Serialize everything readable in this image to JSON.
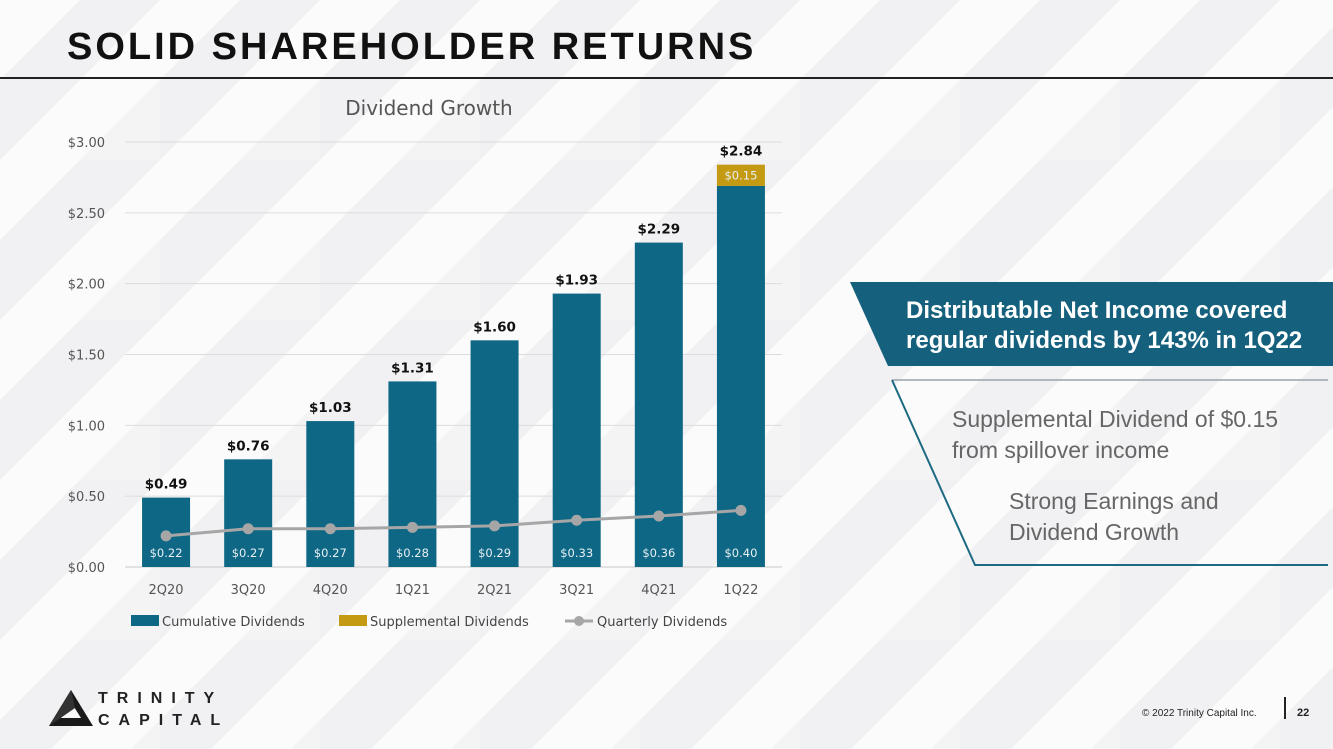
{
  "slide": {
    "title": "SOLID SHAREHOLDER RETURNS",
    "footer": {
      "copyright": "© 2022 Trinity Capital Inc.",
      "page_number": "22"
    },
    "logo": {
      "line1": "TRINITY",
      "line2": "CAPITAL"
    }
  },
  "callouts": {
    "main": "Distributable Net Income covered regular dividends by 143% in 1Q22",
    "point1": "Supplemental Dividend of $0.15 from spillover income",
    "point2": "Strong Earnings and Dividend Growth"
  },
  "chart_data": {
    "type": "bar",
    "title": "Dividend Growth",
    "categories": [
      "2Q20",
      "3Q20",
      "4Q20",
      "1Q21",
      "2Q21",
      "3Q21",
      "4Q21",
      "1Q22"
    ],
    "ylim": [
      0,
      3.0
    ],
    "yticks": [
      "$0.00",
      "$0.50",
      "$1.00",
      "$1.50",
      "$2.00",
      "$2.50",
      "$3.00"
    ],
    "ytick_values": [
      0,
      0.5,
      1.0,
      1.5,
      2.0,
      2.5,
      3.0
    ],
    "grid": true,
    "legend": "bottom",
    "stacked": true,
    "series": [
      {
        "name": "Cumulative Dividends",
        "kind": "bar",
        "color": "#0e6785",
        "values": [
          0.49,
          0.76,
          1.03,
          1.31,
          1.6,
          1.93,
          2.29,
          2.69
        ]
      },
      {
        "name": "Supplemental  Dividends",
        "kind": "bar",
        "color": "#c39a12",
        "values": [
          0,
          0,
          0,
          0,
          0,
          0,
          0,
          0.15
        ],
        "labels": [
          "",
          "",
          "",
          "",
          "",
          "",
          "",
          "$0.15"
        ]
      },
      {
        "name": "Quarterly Dividends",
        "kind": "line",
        "color": "#a6a6a6",
        "values": [
          0.22,
          0.27,
          0.27,
          0.28,
          0.29,
          0.33,
          0.36,
          0.4
        ],
        "labels": [
          "$0.22",
          "$0.27",
          "$0.27",
          "$0.28",
          "$0.29",
          "$0.33",
          "$0.36",
          "$0.40"
        ]
      }
    ],
    "totals": [
      "$0.49",
      "$0.76",
      "$1.03",
      "$1.31",
      "$1.60",
      "$1.93",
      "$2.29",
      "$2.84"
    ]
  }
}
